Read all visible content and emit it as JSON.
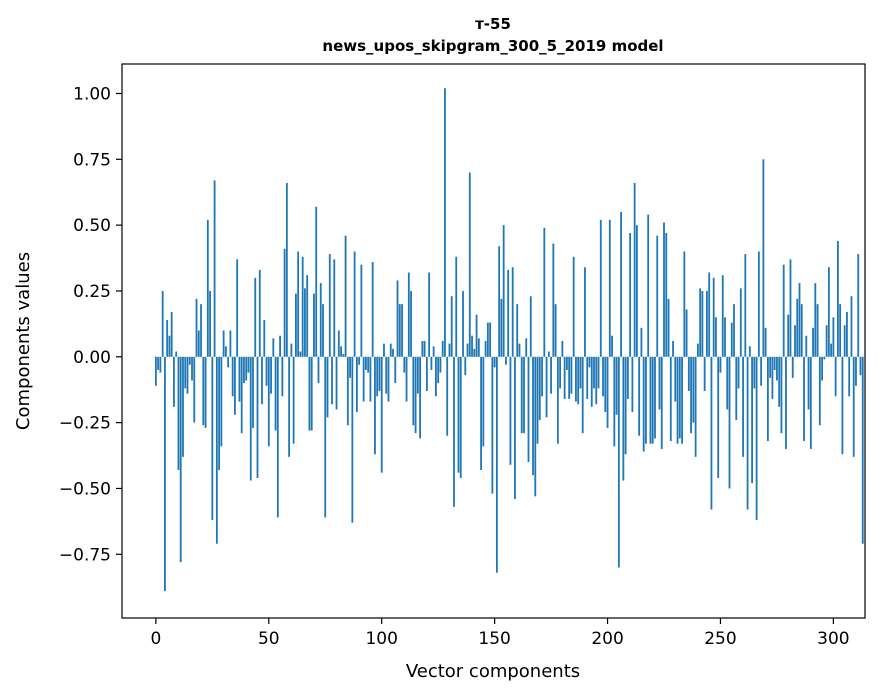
{
  "chart_data": {
    "type": "bar",
    "title": "т-55",
    "subtitle": "news_upos_skipgram_300_5_2019 model",
    "xlabel": "Vector components",
    "ylabel": "Components values",
    "xlim": [
      -15,
      314
    ],
    "ylim": [
      -0.992,
      1.112
    ],
    "xticks": [
      0,
      50,
      100,
      150,
      200,
      250,
      300
    ],
    "xtick_labels": [
      "0",
      "50",
      "100",
      "150",
      "200",
      "250",
      "300"
    ],
    "yticks": [
      -0.75,
      -0.5,
      -0.25,
      0.0,
      0.25,
      0.5,
      0.75,
      1.0
    ],
    "ytick_labels": [
      "−0.75",
      "−0.50",
      "−0.25",
      "0.00",
      "0.25",
      "0.50",
      "0.75",
      "1.00"
    ],
    "bar_color": "#1f77b4",
    "values": [
      -0.11,
      -0.05,
      -0.06,
      0.25,
      -0.89,
      0.14,
      0.08,
      0.17,
      -0.19,
      0.02,
      -0.43,
      -0.78,
      -0.38,
      -0.12,
      -0.14,
      -0.03,
      -0.09,
      -0.25,
      0.22,
      0.1,
      0.2,
      -0.26,
      -0.27,
      0.52,
      0.25,
      -0.62,
      0.67,
      -0.71,
      -0.43,
      -0.34,
      0.1,
      0.04,
      -0.04,
      0.1,
      -0.15,
      -0.22,
      0.37,
      -0.17,
      -0.29,
      -0.1,
      -0.09,
      -0.06,
      -0.47,
      -0.27,
      0.3,
      -0.46,
      0.33,
      -0.18,
      0.14,
      -0.11,
      -0.34,
      -0.14,
      0.07,
      -0.28,
      -0.61,
      0.08,
      -0.15,
      0.41,
      0.66,
      -0.38,
      0.05,
      -0.33,
      0.24,
      0.4,
      0.02,
      0.38,
      0.26,
      0.31,
      -0.28,
      -0.28,
      0.24,
      0.57,
      -0.1,
      0.28,
      0.2,
      -0.61,
      -0.23,
      0.39,
      -0.18,
      0.37,
      -0.2,
      0.1,
      0.04,
      0.01,
      0.46,
      -0.26,
      -0.08,
      -0.63,
      0.4,
      -0.21,
      -0.03,
      0.35,
      -0.17,
      -0.05,
      -0.06,
      -0.17,
      0.36,
      -0.37,
      -0.15,
      -0.13,
      -0.44,
      0.05,
      -0.14,
      -0.17,
      0.05,
      0.03,
      -0.1,
      0.29,
      0.2,
      0.2,
      -0.06,
      -0.17,
      0.32,
      0.25,
      -0.26,
      -0.29,
      -0.14,
      -0.31,
      0.06,
      0.06,
      -0.13,
      0.32,
      -0.05,
      0.04,
      -0.15,
      -0.1,
      -0.06,
      0.06,
      1.02,
      -0.3,
      0.05,
      0.23,
      -0.57,
      0.38,
      -0.44,
      -0.46,
      0.25,
      -0.07,
      0.05,
      0.7,
      0.08,
      0.03,
      0.16,
      0.07,
      -0.43,
      -0.34,
      0.06,
      0.13,
      0.13,
      -0.52,
      -0.04,
      -0.82,
      0.42,
      0.22,
      0.5,
      -0.03,
      0.33,
      -0.41,
      0.34,
      -0.54,
      0.2,
      0.05,
      -0.29,
      -0.29,
      0.07,
      -0.4,
      0.23,
      -0.45,
      -0.53,
      -0.33,
      -0.24,
      -0.15,
      0.49,
      -0.23,
      0.02,
      -0.14,
      0.43,
      0.2,
      -0.33,
      -0.12,
      0.06,
      -0.16,
      -0.05,
      -0.16,
      -0.14,
      0.38,
      -0.17,
      -0.18,
      -0.12,
      -0.29,
      0.34,
      -0.16,
      -0.04,
      -0.19,
      -0.12,
      -0.18,
      -0.12,
      0.52,
      -0.15,
      -0.21,
      -0.27,
      0.52,
      0.08,
      -0.34,
      -0.22,
      -0.8,
      0.55,
      -0.47,
      -0.37,
      -0.16,
      0.47,
      -0.21,
      0.66,
      0.5,
      -0.3,
      0.11,
      -0.36,
      -0.33,
      0.54,
      -0.33,
      -0.33,
      -0.31,
      0.46,
      -0.2,
      -0.35,
      0.51,
      0.47,
      0.22,
      -0.32,
      0.06,
      -0.17,
      -0.33,
      -0.31,
      -0.33,
      0.4,
      0.18,
      -0.13,
      -0.29,
      -0.25,
      -0.38,
      0.05,
      0.26,
      0.25,
      -0.13,
      0.25,
      0.32,
      -0.58,
      0.3,
      0.15,
      -0.46,
      -0.06,
      0.31,
      0.15,
      -0.2,
      -0.5,
      0.13,
      0.2,
      -0.24,
      -0.12,
      0.26,
      -0.38,
      0.39,
      -0.58,
      0.04,
      -0.48,
      -0.12,
      -0.62,
      0.4,
      -0.11,
      0.75,
      0.11,
      -0.32,
      -0.08,
      -0.16,
      -0.05,
      -0.09,
      -0.19,
      -0.29,
      0.35,
      -0.35,
      0.16,
      0.37,
      -0.08,
      0.12,
      0.22,
      0.28,
      0.2,
      -0.32,
      0.08,
      -0.2,
      -0.35,
      0.11,
      0.28,
      0.2,
      -0.26,
      -0.09,
      -0.01,
      0.12,
      0.34,
      0.05,
      0.15,
      -0.15,
      0.44,
      0.2,
      -0.37,
      0.12,
      0.17,
      -0.15,
      0.23,
      -0.38,
      -0.11,
      0.39,
      -0.07,
      -0.71
    ]
  }
}
